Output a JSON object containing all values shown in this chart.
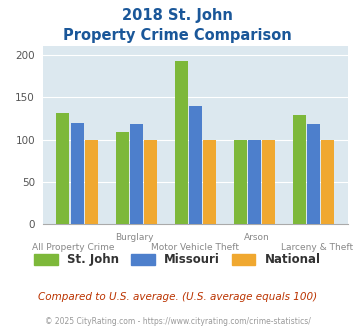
{
  "title_line1": "2018 St. John",
  "title_line2": "Property Crime Comparison",
  "categories": [
    "All Property Crime",
    "Burglary",
    "Motor Vehicle Theft",
    "Arson",
    "Larceny & Theft"
  ],
  "x_labels_top": [
    "",
    "Burglary",
    "",
    "Arson",
    ""
  ],
  "x_labels_bottom": [
    "All Property Crime",
    "",
    "Motor Vehicle Theft",
    "",
    "Larceny & Theft"
  ],
  "st_john": [
    131,
    109,
    192,
    100,
    129
  ],
  "missouri": [
    120,
    118,
    140,
    100,
    118
  ],
  "national": [
    100,
    100,
    100,
    100,
    100
  ],
  "color_stjohn": "#7db83a",
  "color_missouri": "#4d7fcc",
  "color_national": "#f0a830",
  "bg_color": "#dce8ef",
  "ylim": [
    0,
    210
  ],
  "yticks": [
    0,
    50,
    100,
    150,
    200
  ],
  "legend_labels": [
    "St. John",
    "Missouri",
    "National"
  ],
  "title_color": "#1a5799",
  "footnote": "Compared to U.S. average. (U.S. average equals 100)",
  "copyright": "© 2025 CityRating.com - https://www.cityrating.com/crime-statistics/",
  "footnote_color": "#bb3300",
  "copyright_color": "#999999"
}
